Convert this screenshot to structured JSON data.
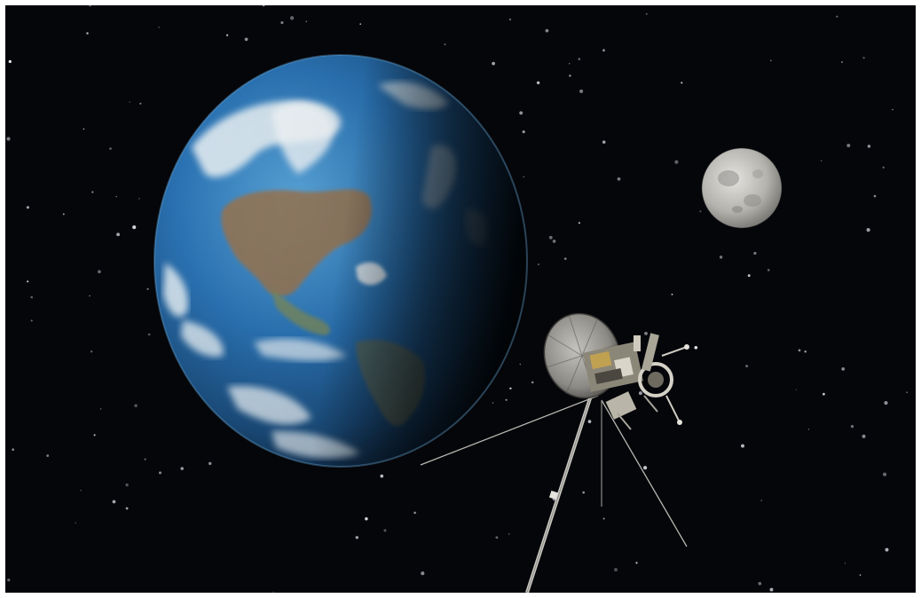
{
  "scene": {
    "subjects": [
      "earth",
      "moon",
      "spacecraft",
      "stars"
    ],
    "colors": {
      "space": "#05060a",
      "earth_ocean": "#2e78b8",
      "earth_cloud": "#e8f0f4",
      "earth_land": "#a9784e",
      "moon_gray": "#b8b8b4",
      "spacecraft_metal": "#c9c6bd",
      "dish": "#7e7c78"
    }
  }
}
